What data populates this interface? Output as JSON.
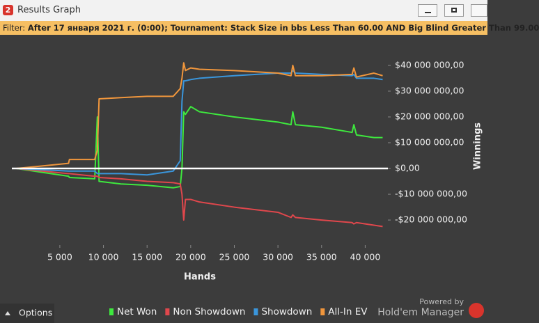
{
  "window": {
    "logo": "2",
    "title": "Results Graph",
    "filter_label": "Filter:",
    "filter_text": "After 17 января 2021 г. (0:00); Tournament: Stack Size in bbs Less Than 60.00 AND Big Blind Greater Than 99.00",
    "options": "Options",
    "powered_by": "Powered by",
    "brand": "Hold'em Manager"
  },
  "chart_data": {
    "type": "line",
    "x_label": "Hands",
    "y_label": "Winnings",
    "legend": "bottom",
    "x": [
      0,
      3000,
      6000,
      6100,
      9000,
      9300,
      9500,
      12000,
      15000,
      18000,
      18800,
      19000,
      19200,
      19400,
      20000,
      21000,
      25000,
      30000,
      31500,
      31700,
      32000,
      35000,
      38500,
      38700,
      39000,
      41000,
      42000
    ],
    "series": [
      {
        "name": "Net Won",
        "color": "#3ee83e",
        "values": [
          0,
          -1500000,
          -3000000,
          -3500000,
          -4000000,
          20000000,
          -5000000,
          -6000000,
          -6500000,
          -7500000,
          -7000000,
          0,
          22000000,
          21000000,
          24000000,
          22000000,
          20000000,
          18000000,
          17000000,
          22000000,
          17000000,
          16000000,
          14000000,
          17000000,
          13000000,
          12000000,
          12000000
        ]
      },
      {
        "name": "Non Showdown",
        "color": "#e0474c",
        "values": [
          0,
          -1000000,
          -2000000,
          -2000000,
          -3000000,
          -3000000,
          -3500000,
          -4000000,
          -5000000,
          -5500000,
          -6000000,
          -10000000,
          -20000000,
          -12000000,
          -12000000,
          -13000000,
          -15000000,
          -17000000,
          -19000000,
          -18000000,
          -19000000,
          -20000000,
          -21000000,
          -21500000,
          -21000000,
          -22000000,
          -22500000
        ]
      },
      {
        "name": "Showdown",
        "color": "#3a96dc",
        "values": [
          0,
          -500000,
          -1000000,
          -1000000,
          -1000000,
          -2000000,
          -2000000,
          -2000000,
          -2500000,
          -1000000,
          3000000,
          26000000,
          34000000,
          34000000,
          34500000,
          35000000,
          36000000,
          37000000,
          37000000,
          38000000,
          37000000,
          36500000,
          36000000,
          36500000,
          35000000,
          35000000,
          34500000
        ]
      },
      {
        "name": "All-In EV",
        "color": "#f0963c",
        "values": [
          0,
          1000000,
          2000000,
          3500000,
          3500000,
          7000000,
          27000000,
          27500000,
          28000000,
          28000000,
          31000000,
          35000000,
          41000000,
          38000000,
          39000000,
          38500000,
          38000000,
          37000000,
          36000000,
          40000000,
          36000000,
          36000000,
          36500000,
          39000000,
          35500000,
          37000000,
          36000000
        ]
      }
    ],
    "xlim": [
      -500,
      42600
    ],
    "xticks": [
      {
        "value": 5000,
        "label": "5 000"
      },
      {
        "value": 10000,
        "label": "10 000"
      },
      {
        "value": 15000,
        "label": "15 000"
      },
      {
        "value": 20000,
        "label": "20 000"
      },
      {
        "value": 25000,
        "label": "25 000"
      },
      {
        "value": 30000,
        "label": "30 000"
      },
      {
        "value": 35000,
        "label": "35 000"
      },
      {
        "value": 40000,
        "label": "40 000"
      }
    ],
    "ylim": [
      -29700000,
      47000000
    ],
    "yticks": [
      {
        "value": 40000000,
        "label": "$40 000 000,00"
      },
      {
        "value": 30000000,
        "label": "$30 000 000,00"
      },
      {
        "value": 20000000,
        "label": "$20 000 000,00"
      },
      {
        "value": 10000000,
        "label": "$10 000 000,00"
      },
      {
        "value": 0,
        "label": "$0,00"
      },
      {
        "value": -10000000,
        "label": "-$10 000 000,00"
      },
      {
        "value": -20000000,
        "label": "-$20 000 000,00"
      }
    ]
  }
}
